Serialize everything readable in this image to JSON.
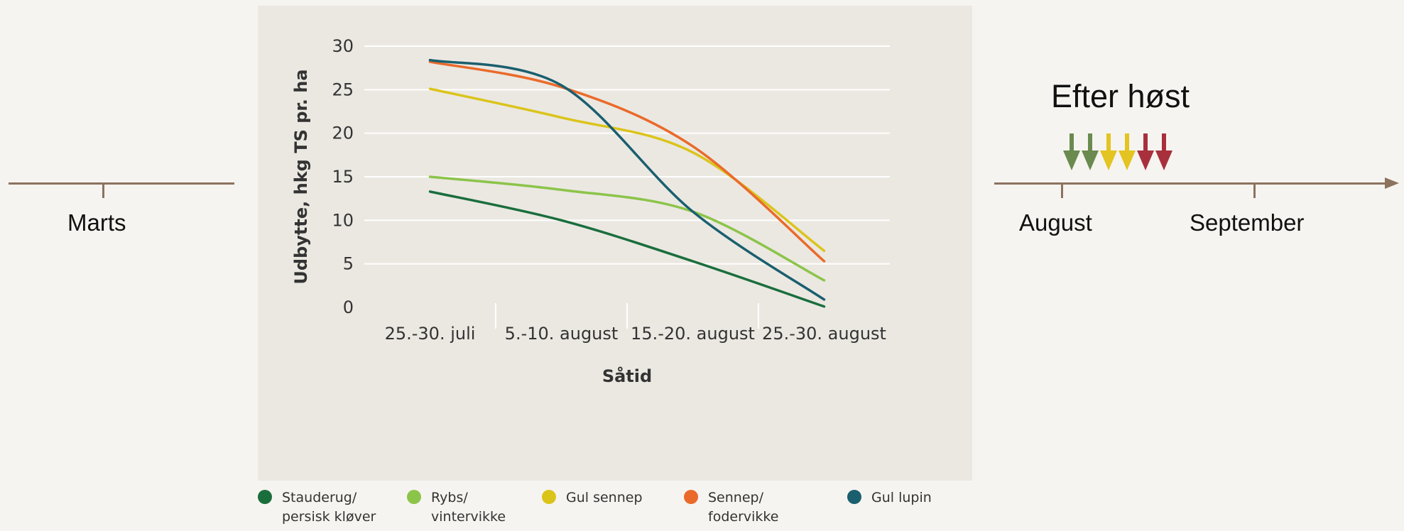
{
  "timeline_left": {
    "month_label": "Marts"
  },
  "timeline_right": {
    "heading": "Efter høst",
    "months": [
      "August",
      "September"
    ],
    "arrow_colors": [
      "#6a8a4f",
      "#6a8a4f",
      "#e3c420",
      "#e3c420",
      "#a8303c",
      "#a8303c"
    ]
  },
  "chart_data": {
    "type": "line",
    "categories": [
      "25.-30. juli",
      "5.-10. august",
      "15.-20. august",
      "25.-30. august"
    ],
    "xlabel": "Såtid",
    "ylabel": "Udbytte, hkg TS pr. ha",
    "ylim": [
      0,
      30
    ],
    "yticks": [
      0,
      5,
      10,
      15,
      20,
      25,
      30
    ],
    "grid": true,
    "legend_position": "bottom",
    "series": [
      {
        "name": "Stauderug/\npersisk kløver",
        "color": "#1a6e3c",
        "values": [
          13.3,
          10.0,
          5.3,
          0.1
        ]
      },
      {
        "name": "Rybs/\nvintervikke",
        "color": "#8cc44a",
        "values": [
          15.0,
          13.5,
          11.0,
          3.1
        ]
      },
      {
        "name": "Gul sennep",
        "color": "#dbc41a",
        "values": [
          25.1,
          21.8,
          17.8,
          6.5
        ]
      },
      {
        "name": "Sennep/\nfodervikke",
        "color": "#ea6a2a",
        "values": [
          28.2,
          25.3,
          18.5,
          5.3
        ]
      },
      {
        "name": "Gul lupin",
        "color": "#1a5f6e",
        "values": [
          28.4,
          25.5,
          11.0,
          0.9
        ]
      }
    ]
  }
}
